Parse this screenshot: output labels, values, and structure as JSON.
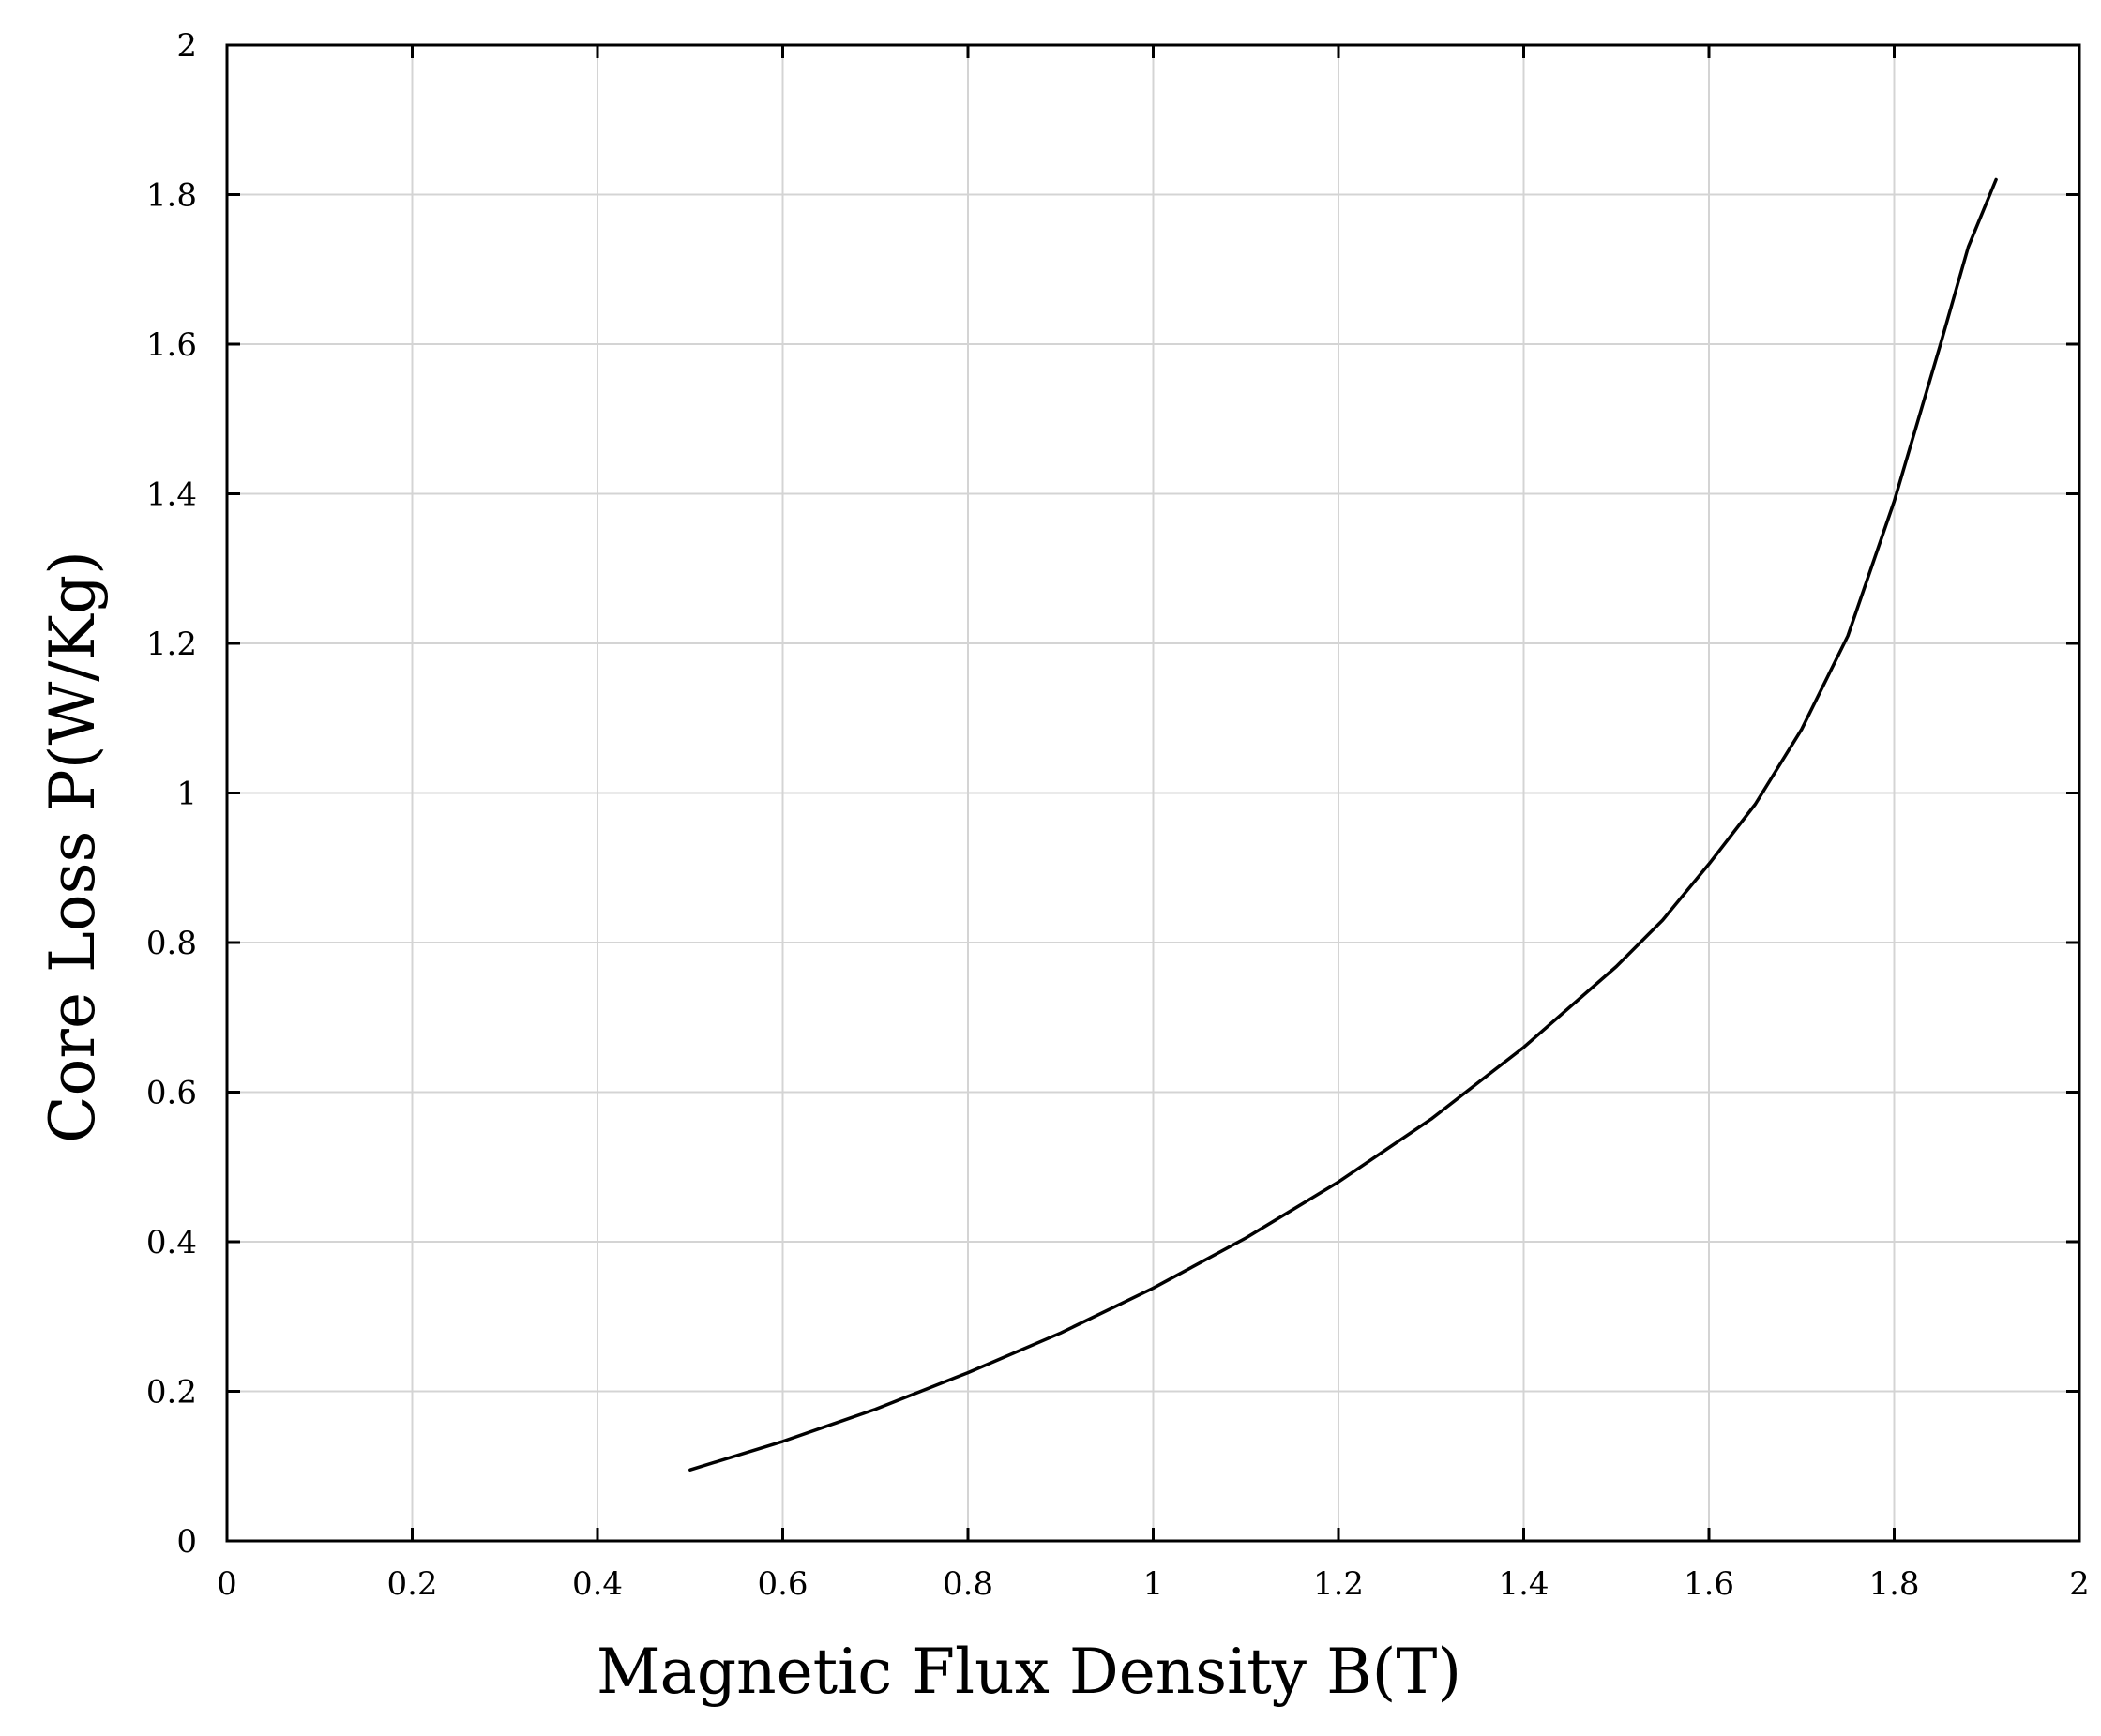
{
  "chart_data": {
    "type": "line",
    "title": "",
    "xlabel": "Magnetic Flux Density B(T)",
    "ylabel": "Core Loss P(W/Kg)",
    "xlim": [
      0,
      2
    ],
    "ylim": [
      0,
      2
    ],
    "grid": true,
    "legend": "none",
    "xticks": [
      "0",
      "0.2",
      "0.4",
      "0.6",
      "0.8",
      "1",
      "1.2",
      "1.4",
      "1.6",
      "1.8",
      "2"
    ],
    "yticks": [
      "0",
      "0.2",
      "0.4",
      "0.6",
      "0.8",
      "1",
      "1.2",
      "1.4",
      "1.6",
      "1.8",
      "2"
    ],
    "series": [
      {
        "color": "#000000",
        "x": [
          0.5,
          0.6,
          0.7,
          0.8,
          0.9,
          1.0,
          1.1,
          1.2,
          1.3,
          1.4,
          1.5,
          1.55,
          1.6,
          1.65,
          1.7,
          1.75,
          1.8,
          1.85,
          1.88,
          1.91
        ],
        "y": [
          0.095,
          0.133,
          0.176,
          0.225,
          0.278,
          0.338,
          0.405,
          0.48,
          0.564,
          0.66,
          0.768,
          0.83,
          0.905,
          0.985,
          1.085,
          1.21,
          1.39,
          1.6,
          1.73,
          1.82
        ]
      }
    ]
  }
}
